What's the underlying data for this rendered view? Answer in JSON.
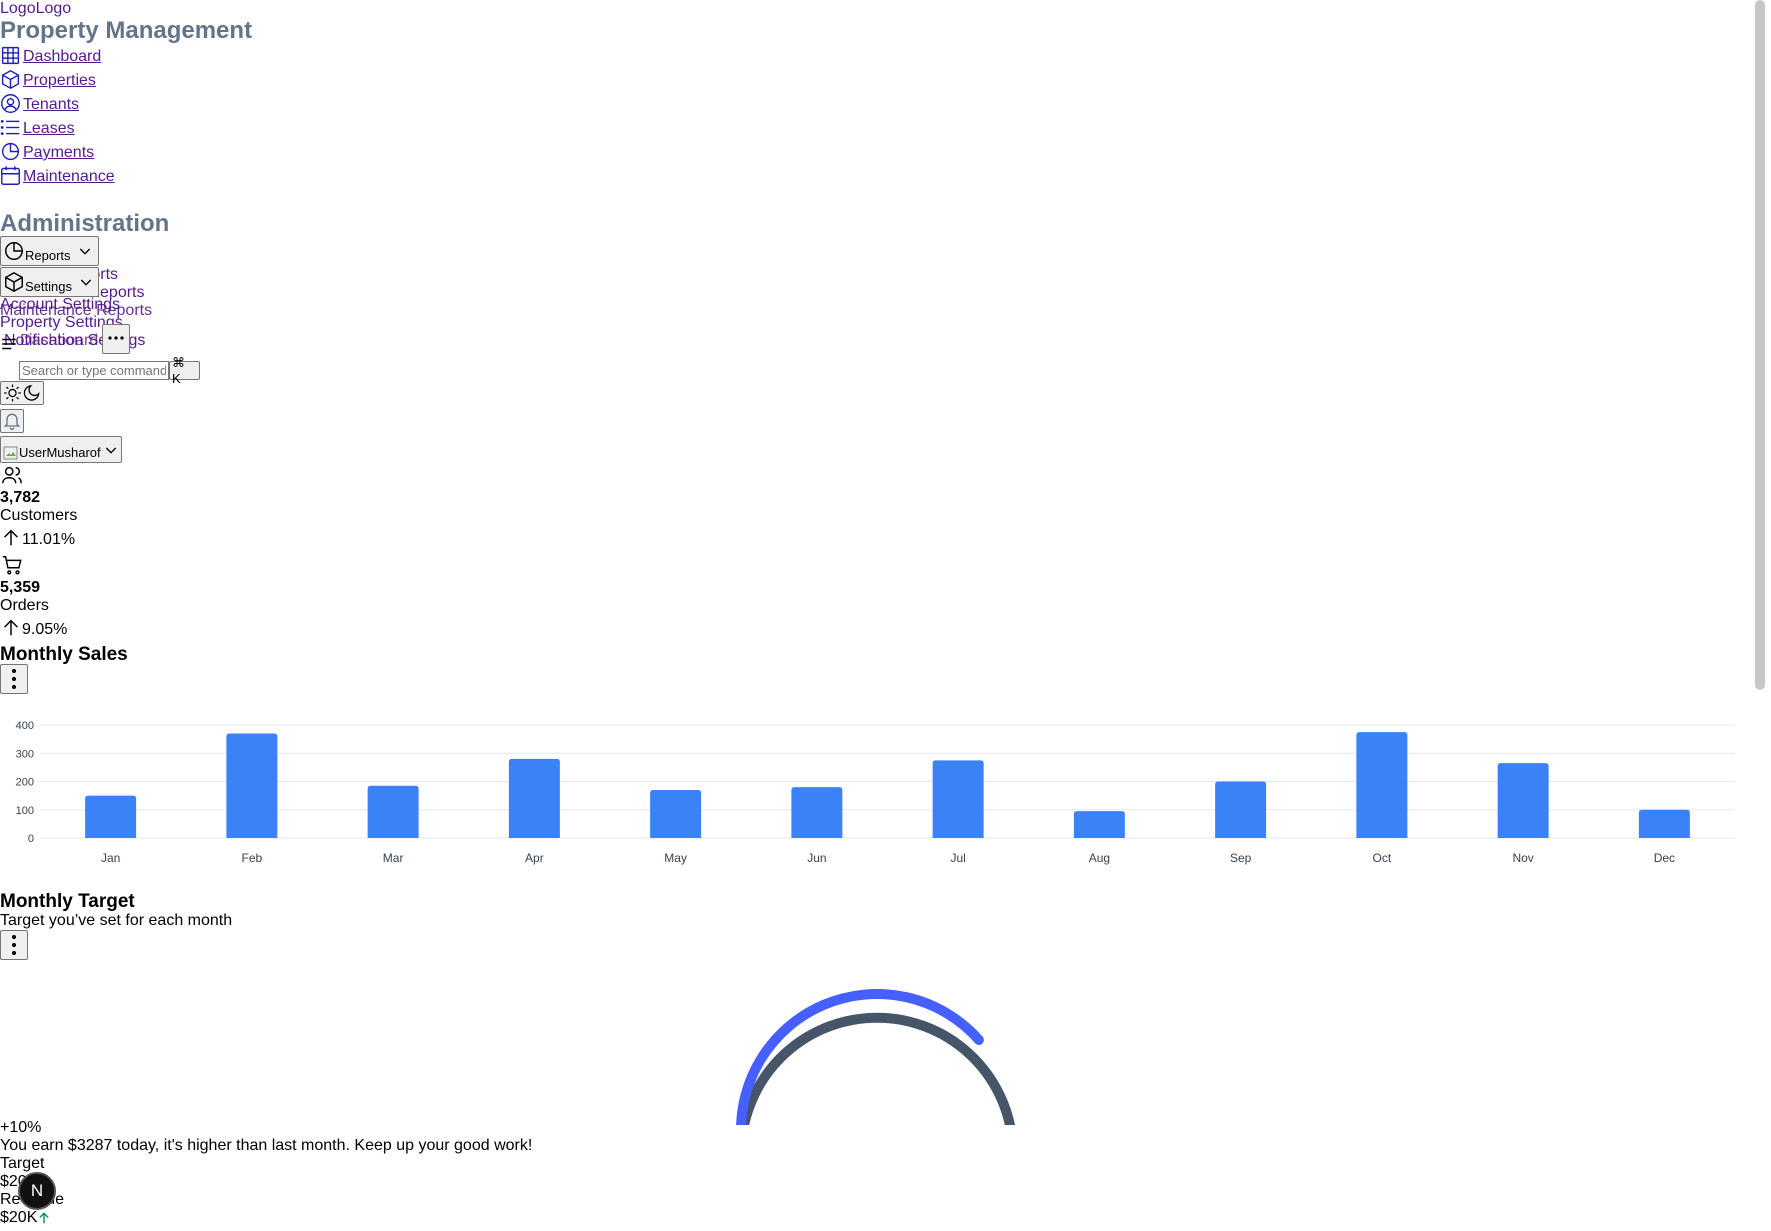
{
  "logo_alts": [
    "Logo",
    "Logo"
  ],
  "brand": "Property Management",
  "nav": [
    {
      "label": "Dashboard",
      "icon": "grid-icon"
    },
    {
      "label": "Properties",
      "icon": "box-icon"
    },
    {
      "label": "Tenants",
      "icon": "user-circle-icon"
    },
    {
      "label": "Leases",
      "icon": "list-icon"
    },
    {
      "label": "Payments",
      "icon": "pie-chart-icon"
    },
    {
      "label": "Maintenance",
      "icon": "calendar-icon"
    }
  ],
  "admin": {
    "heading": "Administration",
    "reports_label": "Reports",
    "settings_label": "Settings",
    "report_links": [
      "Reports",
      "Financial Reports",
      "Maintenance Reports"
    ],
    "settings_links": [
      "Account Settings",
      "Property Settings",
      "Notification Settings"
    ],
    "overlap_fragment": "Dashboard"
  },
  "search": {
    "placeholder": "Search or type command...",
    "shortcut": "⌘ K"
  },
  "user": {
    "avatar_alt": "User",
    "name": "Musharof"
  },
  "stats": [
    {
      "value": "3,782",
      "label": "Customers",
      "change": "11.01%",
      "icon": "users-icon"
    },
    {
      "value": "5,359",
      "label": "Orders",
      "change": "9.05%",
      "icon": "cart-icon"
    }
  ],
  "monthly_sales": {
    "title": "Monthly Sales"
  },
  "chart_data": {
    "type": "bar",
    "title": "Monthly Sales",
    "categories": [
      "Jan",
      "Feb",
      "Mar",
      "Apr",
      "May",
      "Jun",
      "Jul",
      "Aug",
      "Sep",
      "Oct",
      "Nov",
      "Dec"
    ],
    "values": [
      150,
      370,
      185,
      280,
      170,
      180,
      275,
      95,
      200,
      375,
      265,
      100
    ],
    "yticks": [
      "0",
      "100",
      "200",
      "300",
      "400"
    ],
    "ylim": [
      0,
      400
    ],
    "grid": true,
    "bar_color": "#3b82f6"
  },
  "monthly_target": {
    "title": "Monthly Target",
    "subtitle": "Target you’ve set for each month",
    "progress_percent": 75.55,
    "change": "+10%",
    "message": "You earn $3287 today, it's higher than last month. Keep up your good work!",
    "target_label": "Target",
    "target_value": "$20K",
    "revenue_label": "Revenue",
    "revenue_value": "$20K",
    "arc_color": "#465fff",
    "track_color": "#475569"
  },
  "badge": "N",
  "colors": {
    "heading": "#64748b",
    "nav_icon": "#1e1ebd",
    "up_arrow": "#039855"
  }
}
